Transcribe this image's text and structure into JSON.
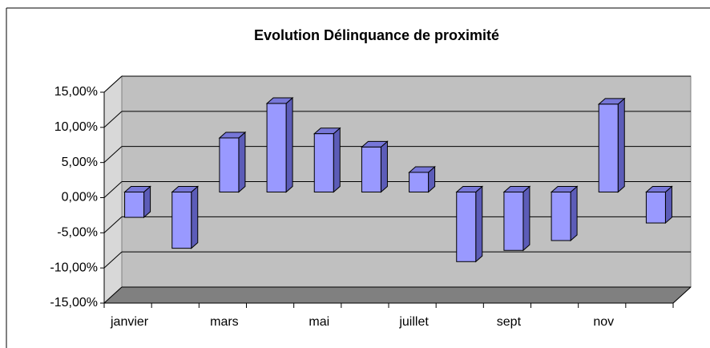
{
  "chart_data": {
    "type": "bar",
    "title": "Evolution Délinquance de proximité",
    "categories": [
      "janvier",
      null,
      "mars",
      null,
      "mai",
      null,
      "juillet",
      null,
      "sept",
      null,
      "nov",
      null
    ],
    "values": [
      -3.6,
      -8.0,
      7.7,
      12.6,
      8.3,
      6.4,
      2.8,
      -9.9,
      -8.3,
      -6.9,
      12.5,
      -4.4
    ],
    "color": "#9999ff",
    "ylim": [
      -15,
      15
    ],
    "yticks": [
      {
        "value": -15,
        "label": "-15,00%"
      },
      {
        "value": -10,
        "label": "-10,00%"
      },
      {
        "value": -5,
        "label": "-5,00%"
      },
      {
        "value": 0,
        "label": "0,00%"
      },
      {
        "value": 5,
        "label": "5,00%"
      },
      {
        "value": 10,
        "label": "10,00%"
      },
      {
        "value": 15,
        "label": "15,00%"
      }
    ],
    "grid": true
  }
}
